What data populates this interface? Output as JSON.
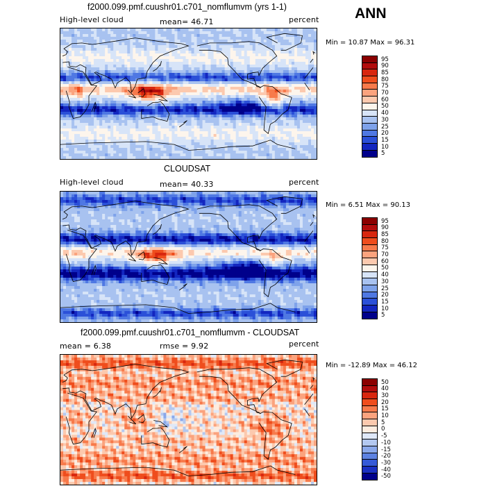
{
  "season": "ANN",
  "chart_data": [
    {
      "type": "heatmap",
      "title": "f2000.099.pmf.cuushr01.c701_nomflumvm (yrs 1-1)",
      "variable": "High-level cloud",
      "stat_left": "mean=  46.71",
      "units": "percent",
      "minmax": "Min =  10.87 Max =  96.31",
      "levels": [
        "95",
        "90",
        "85",
        "80",
        "75",
        "70",
        "60",
        "50",
        "40",
        "30",
        "25",
        "20",
        "15",
        "10",
        "5"
      ],
      "colors": [
        "#8b0000",
        "#b20c0c",
        "#d8270f",
        "#ef4d1d",
        "#f77a4b",
        "#fba37e",
        "#fcc9ae",
        "#fdf5ec",
        "#d7e4f8",
        "#a8c2f0",
        "#7ea2ea",
        "#4f78e3",
        "#2b50d8",
        "#1326c0",
        "#00008b"
      ]
    },
    {
      "type": "heatmap",
      "title": "CLOUDSAT",
      "variable": "High-level cloud",
      "stat_left": "mean=  40.33",
      "units": "percent",
      "minmax": "Min =   6.51 Max =  90.13",
      "levels": [
        "95",
        "90",
        "85",
        "80",
        "75",
        "70",
        "60",
        "50",
        "40",
        "30",
        "25",
        "20",
        "15",
        "10",
        "5"
      ],
      "colors": [
        "#8b0000",
        "#b20c0c",
        "#d8270f",
        "#ef4d1d",
        "#f77a4b",
        "#fba37e",
        "#fcc9ae",
        "#fdf5ec",
        "#d7e4f8",
        "#a8c2f0",
        "#7ea2ea",
        "#4f78e3",
        "#2b50d8",
        "#1326c0",
        "#00008b"
      ]
    },
    {
      "type": "heatmap",
      "title": "f2000.099.pmf.cuushr01.c701_nomflumvm - CLOUDSAT",
      "stat_left": "mean =   6.38",
      "stat_mid": "rmse =   9.92",
      "units": "percent",
      "minmax": "Min = -12.89 Max =  46.12",
      "levels": [
        "50",
        "40",
        "30",
        "20",
        "15",
        "10",
        "5",
        "0",
        "-5",
        "-10",
        "-15",
        "-20",
        "-30",
        "-40",
        "-50"
      ],
      "colors": [
        "#8b0000",
        "#b20c0c",
        "#d8270f",
        "#ef4d1d",
        "#f77a4b",
        "#fba37e",
        "#fcc9ae",
        "#fdecdf",
        "#dfe8f8",
        "#b3c8f0",
        "#8aa8ea",
        "#5d82e2",
        "#355ad8",
        "#1a30c2",
        "#00008b"
      ]
    }
  ]
}
